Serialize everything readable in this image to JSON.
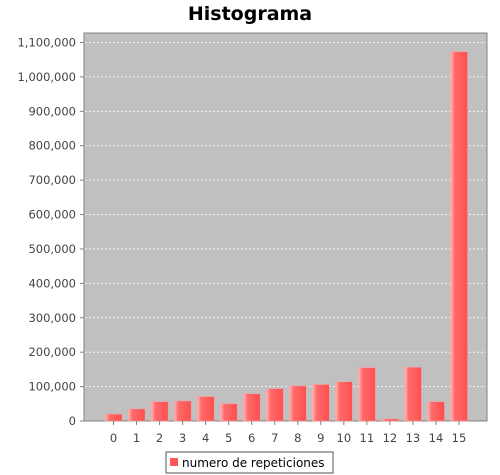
{
  "chart_data": {
    "type": "bar",
    "title": "Histograma",
    "xlabel": "",
    "ylabel": "",
    "categories": [
      "0",
      "1",
      "2",
      "3",
      "4",
      "5",
      "6",
      "7",
      "8",
      "9",
      "10",
      "11",
      "12",
      "13",
      "14",
      "15"
    ],
    "series": [
      {
        "name": "numero de repeticiones",
        "values": [
          20000,
          35000,
          56000,
          58000,
          71000,
          50000,
          79000,
          94000,
          102000,
          106000,
          114000,
          155000,
          6000,
          156000,
          56000,
          1073000
        ]
      }
    ],
    "ylim": [
      0,
      1120000
    ],
    "yticks": [
      0,
      100000,
      200000,
      300000,
      400000,
      500000,
      600000,
      700000,
      800000,
      900000,
      1000000,
      1100000
    ],
    "ytick_labels": [
      "0",
      "100,000",
      "200,000",
      "300,000",
      "400,000",
      "500,000",
      "600,000",
      "700,000",
      "800,000",
      "900,000",
      "1,000,000",
      "1,100,000"
    ],
    "grid": true,
    "legend_position": "bottom",
    "colors": {
      "plot_background": "#c0c0c0",
      "bar": "#ff5555",
      "bar_highlight": "#ffaaaa",
      "gridline": "#ffffff"
    }
  }
}
